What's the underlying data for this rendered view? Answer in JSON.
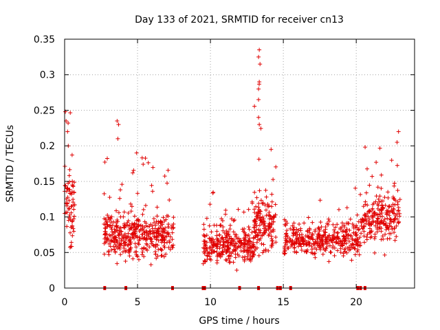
{
  "chart_data": {
    "type": "scatter",
    "title": "Day 133 of 2021, SRMTID for receiver cn13",
    "xlabel": "GPS time / hours",
    "ylabel": "SRMTID / TECUs",
    "xlim": [
      0,
      24
    ],
    "ylim": [
      0,
      0.35
    ],
    "grid": true,
    "x_ticks": [
      0,
      5,
      10,
      15,
      20
    ],
    "x_tick_labels": [
      "0",
      "5",
      "10",
      "15",
      "20"
    ],
    "y_ticks": [
      0,
      0.05,
      0.1,
      0.15,
      0.2,
      0.25,
      0.3,
      0.35
    ],
    "y_tick_labels": [
      "0",
      "0.05",
      "0.1",
      "0.15",
      "0.2",
      "0.25",
      "0.3",
      "0.35"
    ],
    "series": [
      {
        "name": "SRMTID",
        "color": "#e00000",
        "marker": "plus",
        "clusters": [
          {
            "x_range": [
              0.0,
              0.7
            ],
            "y_center": 0.11,
            "y_spread": 0.05,
            "count": 70,
            "y_max": 0.25
          },
          {
            "x_range": [
              2.7,
              7.5
            ],
            "y_center": 0.075,
            "y_spread": 0.03,
            "count": 420,
            "y_max": 0.235
          },
          {
            "x_range": [
              9.5,
              13.0
            ],
            "y_center": 0.06,
            "y_spread": 0.025,
            "count": 300,
            "y_max": 0.15
          },
          {
            "x_range": [
              13.0,
              14.5
            ],
            "y_center": 0.09,
            "y_spread": 0.035,
            "count": 150,
            "y_max": 0.335
          },
          {
            "x_range": [
              15.0,
              20.3
            ],
            "y_center": 0.07,
            "y_spread": 0.025,
            "count": 380,
            "y_max": 0.145
          },
          {
            "x_range": [
              20.3,
              23.0
            ],
            "y_center": 0.1,
            "y_spread": 0.035,
            "count": 220,
            "y_max": 0.22
          }
        ],
        "peak_values": [
          {
            "x": 0.05,
            "y": 0.248
          },
          {
            "x": 0.1,
            "y": 0.235
          },
          {
            "x": 0.2,
            "y": 0.22
          },
          {
            "x": 0.25,
            "y": 0.2
          },
          {
            "x": 3.6,
            "y": 0.235
          },
          {
            "x": 3.7,
            "y": 0.23
          },
          {
            "x": 3.65,
            "y": 0.21
          },
          {
            "x": 13.35,
            "y": 0.335
          },
          {
            "x": 13.3,
            "y": 0.325
          },
          {
            "x": 13.4,
            "y": 0.315
          },
          {
            "x": 13.35,
            "y": 0.29
          },
          {
            "x": 13.3,
            "y": 0.28
          },
          {
            "x": 13.3,
            "y": 0.265
          },
          {
            "x": 13.3,
            "y": 0.24
          },
          {
            "x": 13.35,
            "y": 0.23
          },
          {
            "x": 22.9,
            "y": 0.22
          },
          {
            "x": 22.8,
            "y": 0.205
          }
        ]
      }
    ],
    "zero_markers_x": [
      2.75,
      4.2,
      7.4,
      9.5,
      9.6,
      12.0,
      13.3,
      14.6,
      14.8,
      15.5,
      20.1,
      20.3,
      20.6
    ]
  }
}
